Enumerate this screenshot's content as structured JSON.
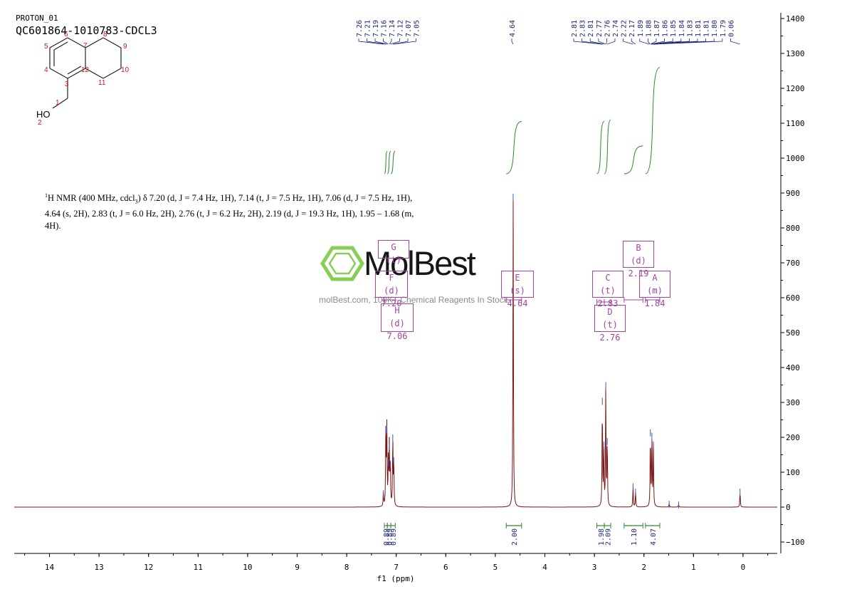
{
  "header": {
    "experiment": "PROTON_01",
    "sample": "QC601864-1010783-CDCL3"
  },
  "nmr_text": {
    "prefix": "1",
    "nucleus": "H NMR (400 MHz, cdcl",
    "sub": "3",
    "line1_rest": ") δ 7.20 (d, J = 7.4 Hz, 1H), 7.14 (t, J = 7.5 Hz, 1H), 7.06 (d, J = 7.5 Hz, 1H),",
    "line2": "4.64 (s, 2H), 2.83 (t, J = 6.0 Hz, 2H), 2.76 (t, J = 6.2 Hz, 2H), 2.19 (d, J = 19.3 Hz, 1H), 1.95 – 1.68 (m,",
    "line3": "4H)."
  },
  "structure": {
    "atom_numbers": [
      "1",
      "2",
      "3",
      "4",
      "5",
      "6",
      "7",
      "8",
      "9",
      "10",
      "11",
      "12"
    ],
    "hetero_label": "HO"
  },
  "watermark": {
    "name": "MolBest",
    "url": "molBest.com, 100K+ Chemical Reagents In Stock."
  },
  "colors": {
    "spectrum": "#7a1414",
    "integral": "#2e8b2e",
    "peak_label": "#1f2a7a",
    "multiplet": "#a145a1",
    "axis": "#000000"
  },
  "multiplets": [
    {
      "name": "G (t)",
      "shift": "7.14"
    },
    {
      "name": "F (d)",
      "shift": "7.20"
    },
    {
      "name": "H (d)",
      "shift": "7.06"
    },
    {
      "name": "E (s)",
      "shift": "4.64"
    },
    {
      "name": "C (t)",
      "shift": "2.83"
    },
    {
      "name": "D (t)",
      "shift": "2.76"
    },
    {
      "name": "B (d)",
      "shift": "2.19"
    },
    {
      "name": "A (m)",
      "shift": "1.84"
    }
  ],
  "chart_data": {
    "type": "line",
    "xlabel": "f1 (ppm)",
    "xlim": [
      14.7,
      -0.7
    ],
    "xticks": [
      14,
      13,
      12,
      11,
      10,
      9,
      8,
      7,
      6,
      5,
      4,
      3,
      2,
      1,
      0
    ],
    "ylim": [
      -130,
      1420
    ],
    "yticks": [
      1400,
      1300,
      1200,
      1100,
      1000,
      900,
      800,
      700,
      600,
      500,
      400,
      300,
      200,
      100,
      0,
      -100
    ],
    "peak_labels_aromatic": [
      "7.26",
      "7.21",
      "7.19",
      "7.16",
      "7.14",
      "7.12",
      "7.07",
      "7.05"
    ],
    "peak_labels_center": [
      "4.64"
    ],
    "peak_labels_aliphatic": [
      "2.81",
      "2.83",
      "2.81",
      "2.77",
      "2.76",
      "2.74",
      "2.22",
      "2.17",
      "1.89",
      "1.88",
      "1.87",
      "1.86",
      "1.85",
      "1.84",
      "1.83",
      "1.81",
      "1.81",
      "1.80",
      "1.79",
      "0.06"
    ],
    "peaks": [
      {
        "x": 7.26,
        "y": 40
      },
      {
        "x": 7.21,
        "y": 220
      },
      {
        "x": 7.19,
        "y": 225
      },
      {
        "x": 7.16,
        "y": 130
      },
      {
        "x": 7.14,
        "y": 175
      },
      {
        "x": 7.12,
        "y": 125
      },
      {
        "x": 7.07,
        "y": 200
      },
      {
        "x": 7.05,
        "y": 135
      },
      {
        "x": 4.64,
        "y": 890
      },
      {
        "x": 2.84,
        "y": 305
      },
      {
        "x": 2.81,
        "y": 180
      },
      {
        "x": 2.77,
        "y": 350
      },
      {
        "x": 2.74,
        "y": 190
      },
      {
        "x": 2.22,
        "y": 60
      },
      {
        "x": 2.17,
        "y": 45
      },
      {
        "x": 1.87,
        "y": 215
      },
      {
        "x": 1.84,
        "y": 205
      },
      {
        "x": 1.81,
        "y": 180
      },
      {
        "x": 1.49,
        "y": 10
      },
      {
        "x": 1.3,
        "y": 8
      },
      {
        "x": 0.06,
        "y": 45
      }
    ],
    "integrals": [
      {
        "from": 7.24,
        "to": 7.18,
        "value": "0.89"
      },
      {
        "from": 7.18,
        "to": 7.11,
        "value": "0.89"
      },
      {
        "from": 7.11,
        "to": 7.02,
        "value": "0.89"
      },
      {
        "from": 4.78,
        "to": 4.47,
        "value": "2.00"
      },
      {
        "from": 2.95,
        "to": 2.8,
        "value": "1.98"
      },
      {
        "from": 2.8,
        "to": 2.67,
        "value": "2.09"
      },
      {
        "from": 2.4,
        "to": 2.02,
        "value": "1.10"
      },
      {
        "from": 1.97,
        "to": 1.68,
        "value": "4.07"
      }
    ],
    "integral_curves": [
      {
        "from": 7.24,
        "to": 7.18,
        "ystart": 955,
        "yend": 1020
      },
      {
        "from": 7.18,
        "to": 7.11,
        "ystart": 955,
        "yend": 1020
      },
      {
        "from": 7.11,
        "to": 7.02,
        "ystart": 955,
        "yend": 1020
      },
      {
        "from": 4.78,
        "to": 4.47,
        "ystart": 955,
        "yend": 1105
      },
      {
        "from": 2.95,
        "to": 2.8,
        "ystart": 955,
        "yend": 1105
      },
      {
        "from": 2.8,
        "to": 2.67,
        "ystart": 955,
        "yend": 1110
      },
      {
        "from": 2.4,
        "to": 2.02,
        "ystart": 955,
        "yend": 1035
      },
      {
        "from": 1.97,
        "to": 1.68,
        "ystart": 955,
        "yend": 1260
      }
    ]
  }
}
